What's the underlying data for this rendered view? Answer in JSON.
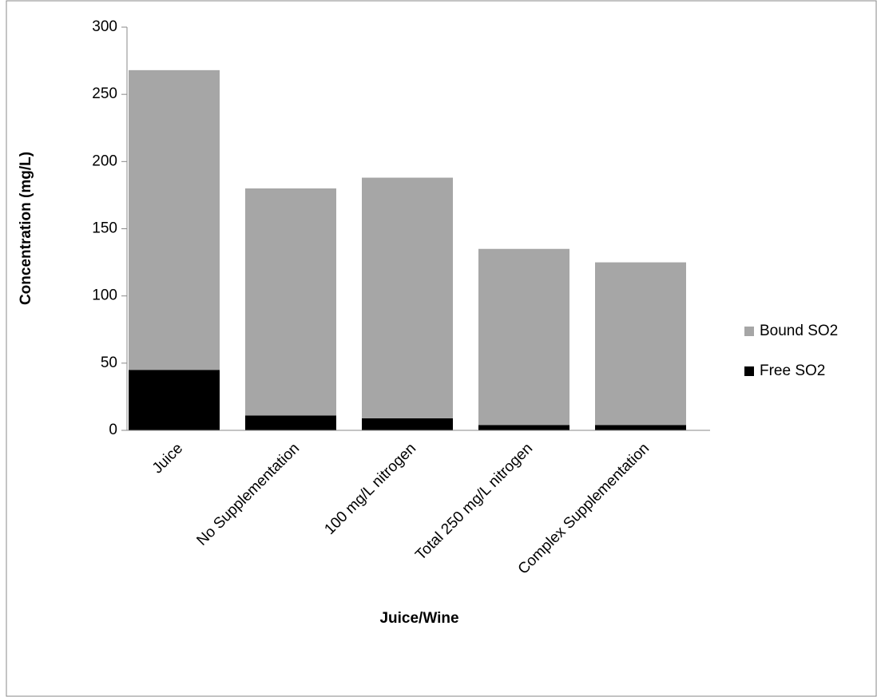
{
  "chart_data": {
    "type": "stacked-bar",
    "x_label": "Juice/Wine",
    "y_label": "Concentration (mg/L)",
    "categories": [
      "Juice",
      "No Supplementation",
      "100 mg/L nitrogen",
      "Total 250 mg/L nitrogen",
      "Complex Supplementation"
    ],
    "series": [
      {
        "name": "Free SO2",
        "color": "#000000",
        "values": [
          45,
          11,
          9,
          4,
          4
        ]
      },
      {
        "name": "Bound SO2",
        "color": "#a6a6a6",
        "values": [
          223,
          169,
          179,
          131,
          121
        ]
      }
    ],
    "ylim": [
      0,
      300
    ],
    "yticks": [
      0,
      50,
      100,
      150,
      200,
      250,
      300
    ],
    "legend": "right"
  }
}
